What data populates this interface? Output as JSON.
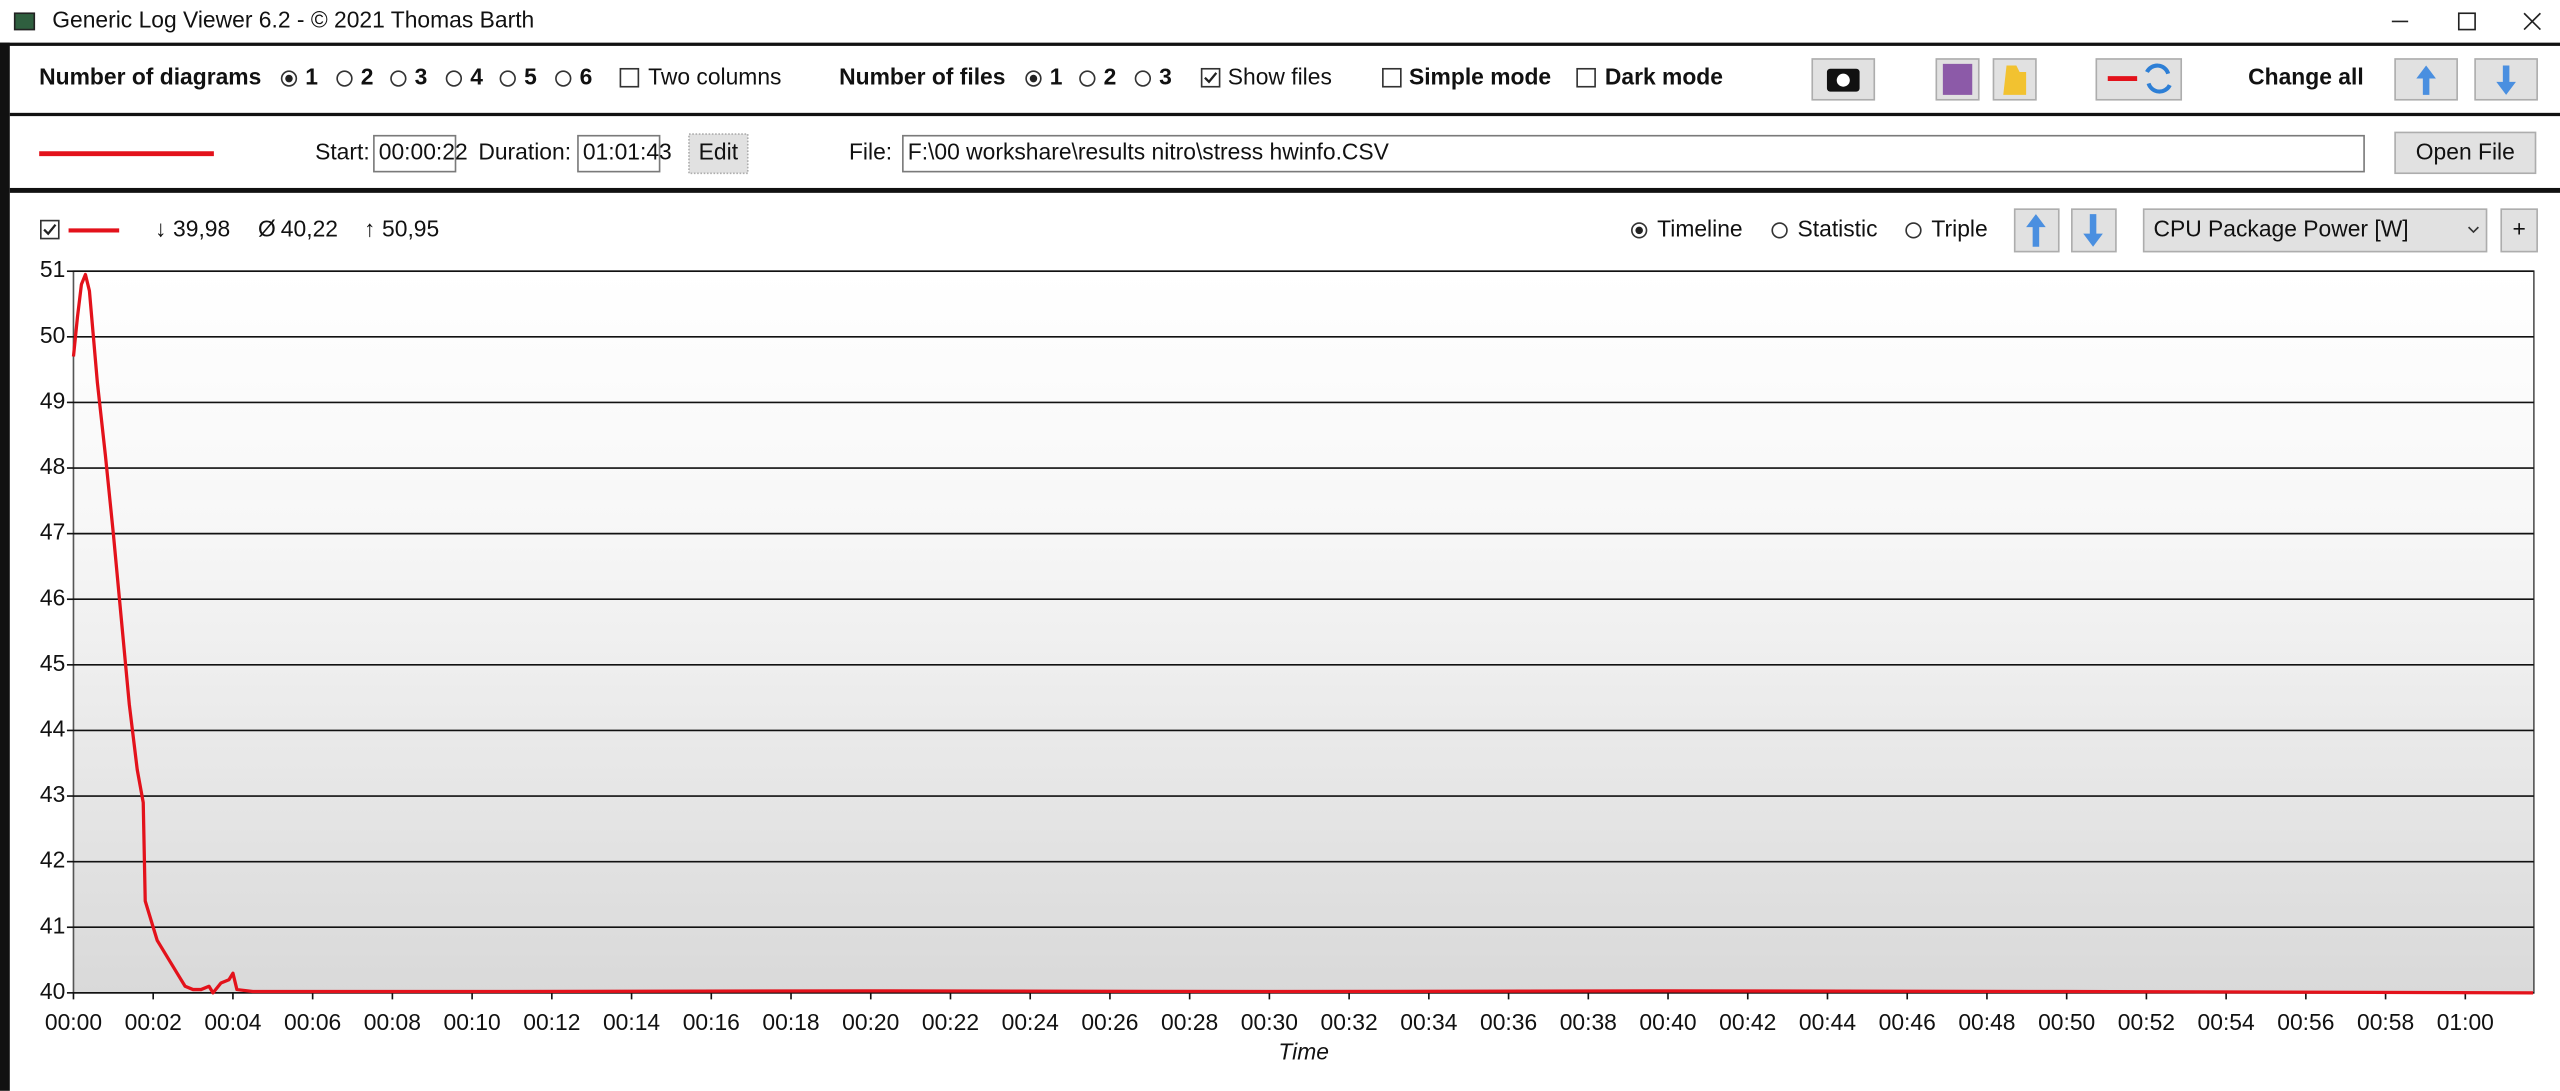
{
  "window": {
    "title": "Generic Log Viewer 6.2 - © 2021 Thomas Barth"
  },
  "toolbar": {
    "diagrams": {
      "label": "Number of diagrams",
      "options": [
        {
          "label": "1",
          "checked": true
        },
        {
          "label": "2",
          "checked": false
        },
        {
          "label": "3",
          "checked": false
        },
        {
          "label": "4",
          "checked": false
        },
        {
          "label": "5",
          "checked": false
        },
        {
          "label": "6",
          "checked": false
        }
      ]
    },
    "two_columns": {
      "label": "Two columns",
      "checked": false
    },
    "files": {
      "label": "Number of files",
      "options": [
        {
          "label": "1",
          "checked": true
        },
        {
          "label": "2",
          "checked": false
        },
        {
          "label": "3",
          "checked": false
        }
      ]
    },
    "show_files": {
      "label": "Show files",
      "checked": true
    },
    "simple_mode": {
      "label": "Simple mode",
      "checked": false
    },
    "dark_mode": {
      "label": "Dark mode",
      "checked": false
    },
    "change_all": "Change all"
  },
  "file_bar": {
    "start_label": "Start:",
    "start": "00:00:22",
    "duration_label": "Duration:",
    "duration": "01:01:43",
    "edit": "Edit",
    "file_label": "File:",
    "file": "F:\\00 workshare\\results nitro\\stress hwinfo.CSV",
    "open_file": "Open File"
  },
  "diagram": {
    "show_checked": true,
    "min_symbol": "↓",
    "min": "39,98",
    "avg_symbol": "Ø",
    "avg": "40,22",
    "max_symbol": "↑",
    "max": "50,95",
    "views": [
      {
        "label": "Timeline",
        "checked": true
      },
      {
        "label": "Statistic",
        "checked": false
      },
      {
        "label": "Triple",
        "checked": false
      }
    ],
    "channel": "CPU Package Power [W]",
    "add": "+"
  },
  "chart_data": {
    "type": "line",
    "color": "#e3121b",
    "xlabel": "Time",
    "x": [
      0,
      0.1,
      0.2,
      0.3,
      0.4,
      0.5,
      0.6,
      0.8,
      1.0,
      1.2,
      1.4,
      1.6,
      1.75,
      1.8,
      1.9,
      2.0,
      2.1,
      2.2,
      2.4,
      2.6,
      2.8,
      3.0,
      3.2,
      3.4,
      3.5,
      3.7,
      3.9,
      4.0,
      4.1,
      4.5,
      10,
      20,
      30,
      40,
      50,
      61.7
    ],
    "values": [
      49.7,
      50.3,
      50.8,
      50.95,
      50.7,
      50.0,
      49.3,
      48.2,
      47.0,
      45.7,
      44.4,
      43.4,
      42.9,
      41.4,
      41.2,
      41.0,
      40.8,
      40.7,
      40.5,
      40.3,
      40.1,
      40.05,
      40.05,
      40.1,
      40.0,
      40.15,
      40.2,
      40.3,
      40.05,
      40.02,
      40.02,
      40.03,
      40.02,
      40.03,
      40.02,
      40.0
    ],
    "xlim": [
      0,
      61.72
    ],
    "xticks": [
      {
        "value": 0,
        "label": "00:00"
      },
      {
        "value": 2,
        "label": "00:02"
      },
      {
        "value": 4,
        "label": "00:04"
      },
      {
        "value": 6,
        "label": "00:06"
      },
      {
        "value": 8,
        "label": "00:08"
      },
      {
        "value": 10,
        "label": "00:10"
      },
      {
        "value": 12,
        "label": "00:12"
      },
      {
        "value": 14,
        "label": "00:14"
      },
      {
        "value": 16,
        "label": "00:16"
      },
      {
        "value": 18,
        "label": "00:18"
      },
      {
        "value": 20,
        "label": "00:20"
      },
      {
        "value": 22,
        "label": "00:22"
      },
      {
        "value": 24,
        "label": "00:24"
      },
      {
        "value": 26,
        "label": "00:26"
      },
      {
        "value": 28,
        "label": "00:28"
      },
      {
        "value": 30,
        "label": "00:30"
      },
      {
        "value": 32,
        "label": "00:32"
      },
      {
        "value": 34,
        "label": "00:34"
      },
      {
        "value": 36,
        "label": "00:36"
      },
      {
        "value": 38,
        "label": "00:38"
      },
      {
        "value": 40,
        "label": "00:40"
      },
      {
        "value": 42,
        "label": "00:42"
      },
      {
        "value": 44,
        "label": "00:44"
      },
      {
        "value": 46,
        "label": "00:46"
      },
      {
        "value": 48,
        "label": "00:48"
      },
      {
        "value": 50,
        "label": "00:50"
      },
      {
        "value": 52,
        "label": "00:52"
      },
      {
        "value": 54,
        "label": "00:54"
      },
      {
        "value": 56,
        "label": "00:56"
      },
      {
        "value": 58,
        "label": "00:58"
      },
      {
        "value": 60,
        "label": "01:00"
      }
    ],
    "ylim": [
      40,
      51
    ],
    "yticks": [
      40,
      41,
      42,
      43,
      44,
      45,
      46,
      47,
      48,
      49,
      50,
      51
    ],
    "grid": true
  }
}
